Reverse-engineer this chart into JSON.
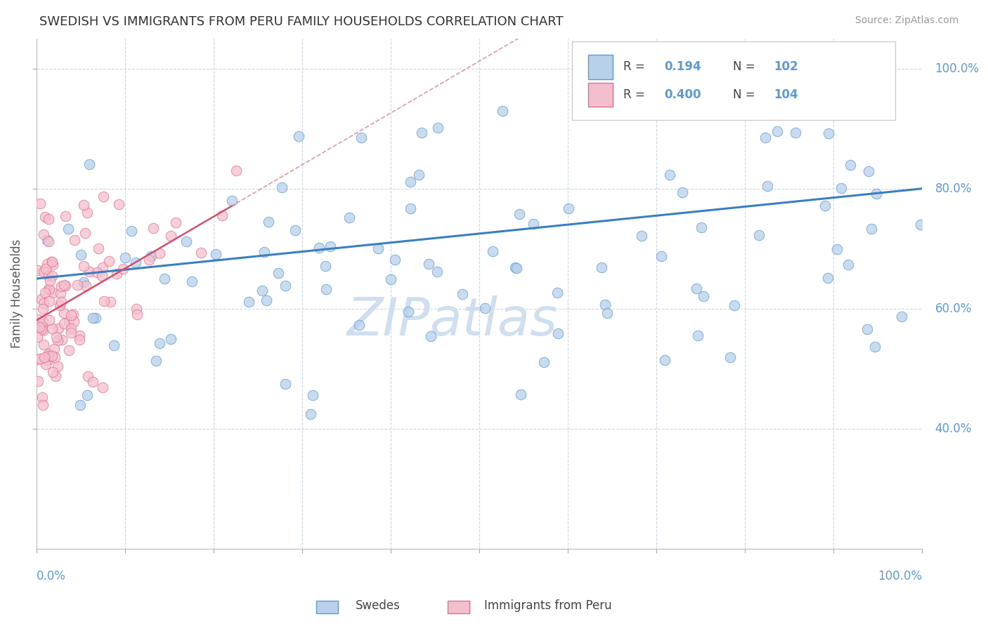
{
  "title": "SWEDISH VS IMMIGRANTS FROM PERU FAMILY HOUSEHOLDS CORRELATION CHART",
  "source_text": "Source: ZipAtlas.com",
  "ylabel": "Family Households",
  "ytick_labels": [
    "100.0%",
    "80.0%",
    "60.0%",
    "40.0%"
  ],
  "ytick_values": [
    100,
    80,
    60,
    40
  ],
  "blue_R": 0.194,
  "pink_R": 0.4,
  "blue_color": "#b8d0ea",
  "blue_edge_color": "#5b9bd5",
  "pink_color": "#f4bfcc",
  "pink_edge_color": "#e07090",
  "blue_line_color": "#3a7fc1",
  "pink_line_color": "#d05070",
  "title_color": "#333333",
  "axis_label_color": "#5b9bd5",
  "watermark_color": "#d0dff0",
  "background_color": "#ffffff",
  "grid_color": "#c8d4e0",
  "xlim": [
    0,
    100
  ],
  "ylim": [
    20,
    105
  ],
  "seed": 77
}
